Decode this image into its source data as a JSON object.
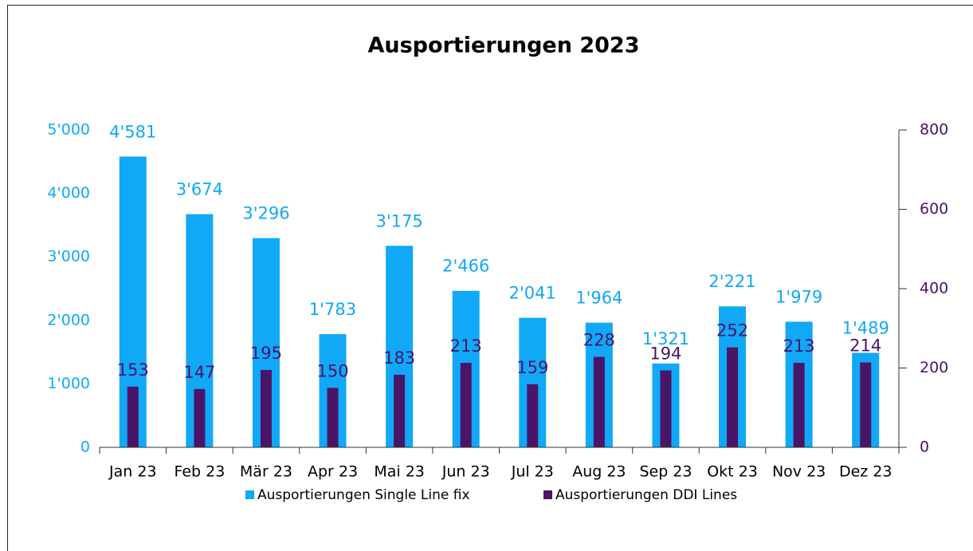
{
  "chart_data": {
    "type": "bar",
    "title": "Ausportierungen 2023",
    "categories": [
      "Jan 23",
      "Feb 23",
      "Mär 23",
      "Apr 23",
      "Mai 23",
      "Jun 23",
      "Jul 23",
      "Aug 23",
      "Sep 23",
      "Okt 23",
      "Nov 23",
      "Dez 23"
    ],
    "series": [
      {
        "name": "Ausportierungen Single Line fix",
        "color": "#11a8f7",
        "values": [
          4581,
          3674,
          3296,
          1783,
          3175,
          2466,
          2041,
          1964,
          1321,
          2221,
          1979,
          1489
        ],
        "value_labels": [
          "4'581",
          "3'674",
          "3'296",
          "1'783",
          "3'175",
          "2'466",
          "2'041",
          "1'964",
          "1'321",
          "2'221",
          "1'979",
          "1'489"
        ]
      },
      {
        "name": "Ausportierungen DDI Lines",
        "color": "#4a1566",
        "axis": "y2",
        "values": [
          153,
          147,
          195,
          150,
          183,
          213,
          159,
          228,
          194,
          252,
          213,
          214
        ]
      }
    ],
    "ylim": [
      0,
      5000
    ],
    "yticks": [
      0,
      {
        "value": 1000,
        "label": "1'000"
      },
      {
        "value": 2000,
        "label": "2'000"
      },
      {
        "value": 3000,
        "label": "3'000"
      },
      {
        "value": 4000,
        "label": "4'000"
      },
      {
        "value": 5000,
        "label": "5'000"
      }
    ],
    "y2lim": [
      0,
      800
    ],
    "y2ticks": [
      0,
      200,
      400,
      600,
      800
    ],
    "legend": "bottom"
  }
}
